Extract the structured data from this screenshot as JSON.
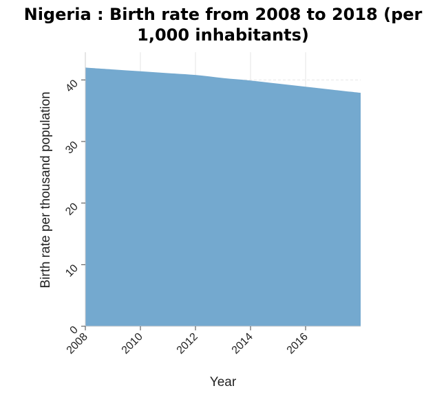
{
  "chart_data": {
    "type": "area",
    "title_line1": "Nigeria : Birth rate from 2008 to 2018 (per",
    "title_line2": "1,000 inhabitants)",
    "xlabel": "Year",
    "ylabel": "Birth rate per thousand population",
    "x": [
      2008,
      2009,
      2010,
      2011,
      2012,
      2013,
      2014,
      2015,
      2016,
      2017,
      2018
    ],
    "series": [
      {
        "values": [
          42.0,
          41.7,
          41.4,
          41.1,
          40.8,
          40.3,
          39.9,
          39.4,
          38.9,
          38.4,
          37.9
        ]
      }
    ],
    "xticks": [
      2008,
      2010,
      2012,
      2014,
      2016
    ],
    "xtick_labels": [
      "2008",
      "2010",
      "2012",
      "2014",
      "2016"
    ],
    "yticks": [
      0,
      10,
      20,
      30,
      40
    ],
    "ytick_labels": [
      "0",
      "10",
      "20",
      "30",
      "40"
    ],
    "xlim": [
      2008,
      2018
    ],
    "ylim": [
      0,
      44.5
    ],
    "grid": true,
    "colors": {
      "fill": "#74a9cf",
      "grid": "#e6e6e6",
      "axis": "#cccccc"
    }
  }
}
